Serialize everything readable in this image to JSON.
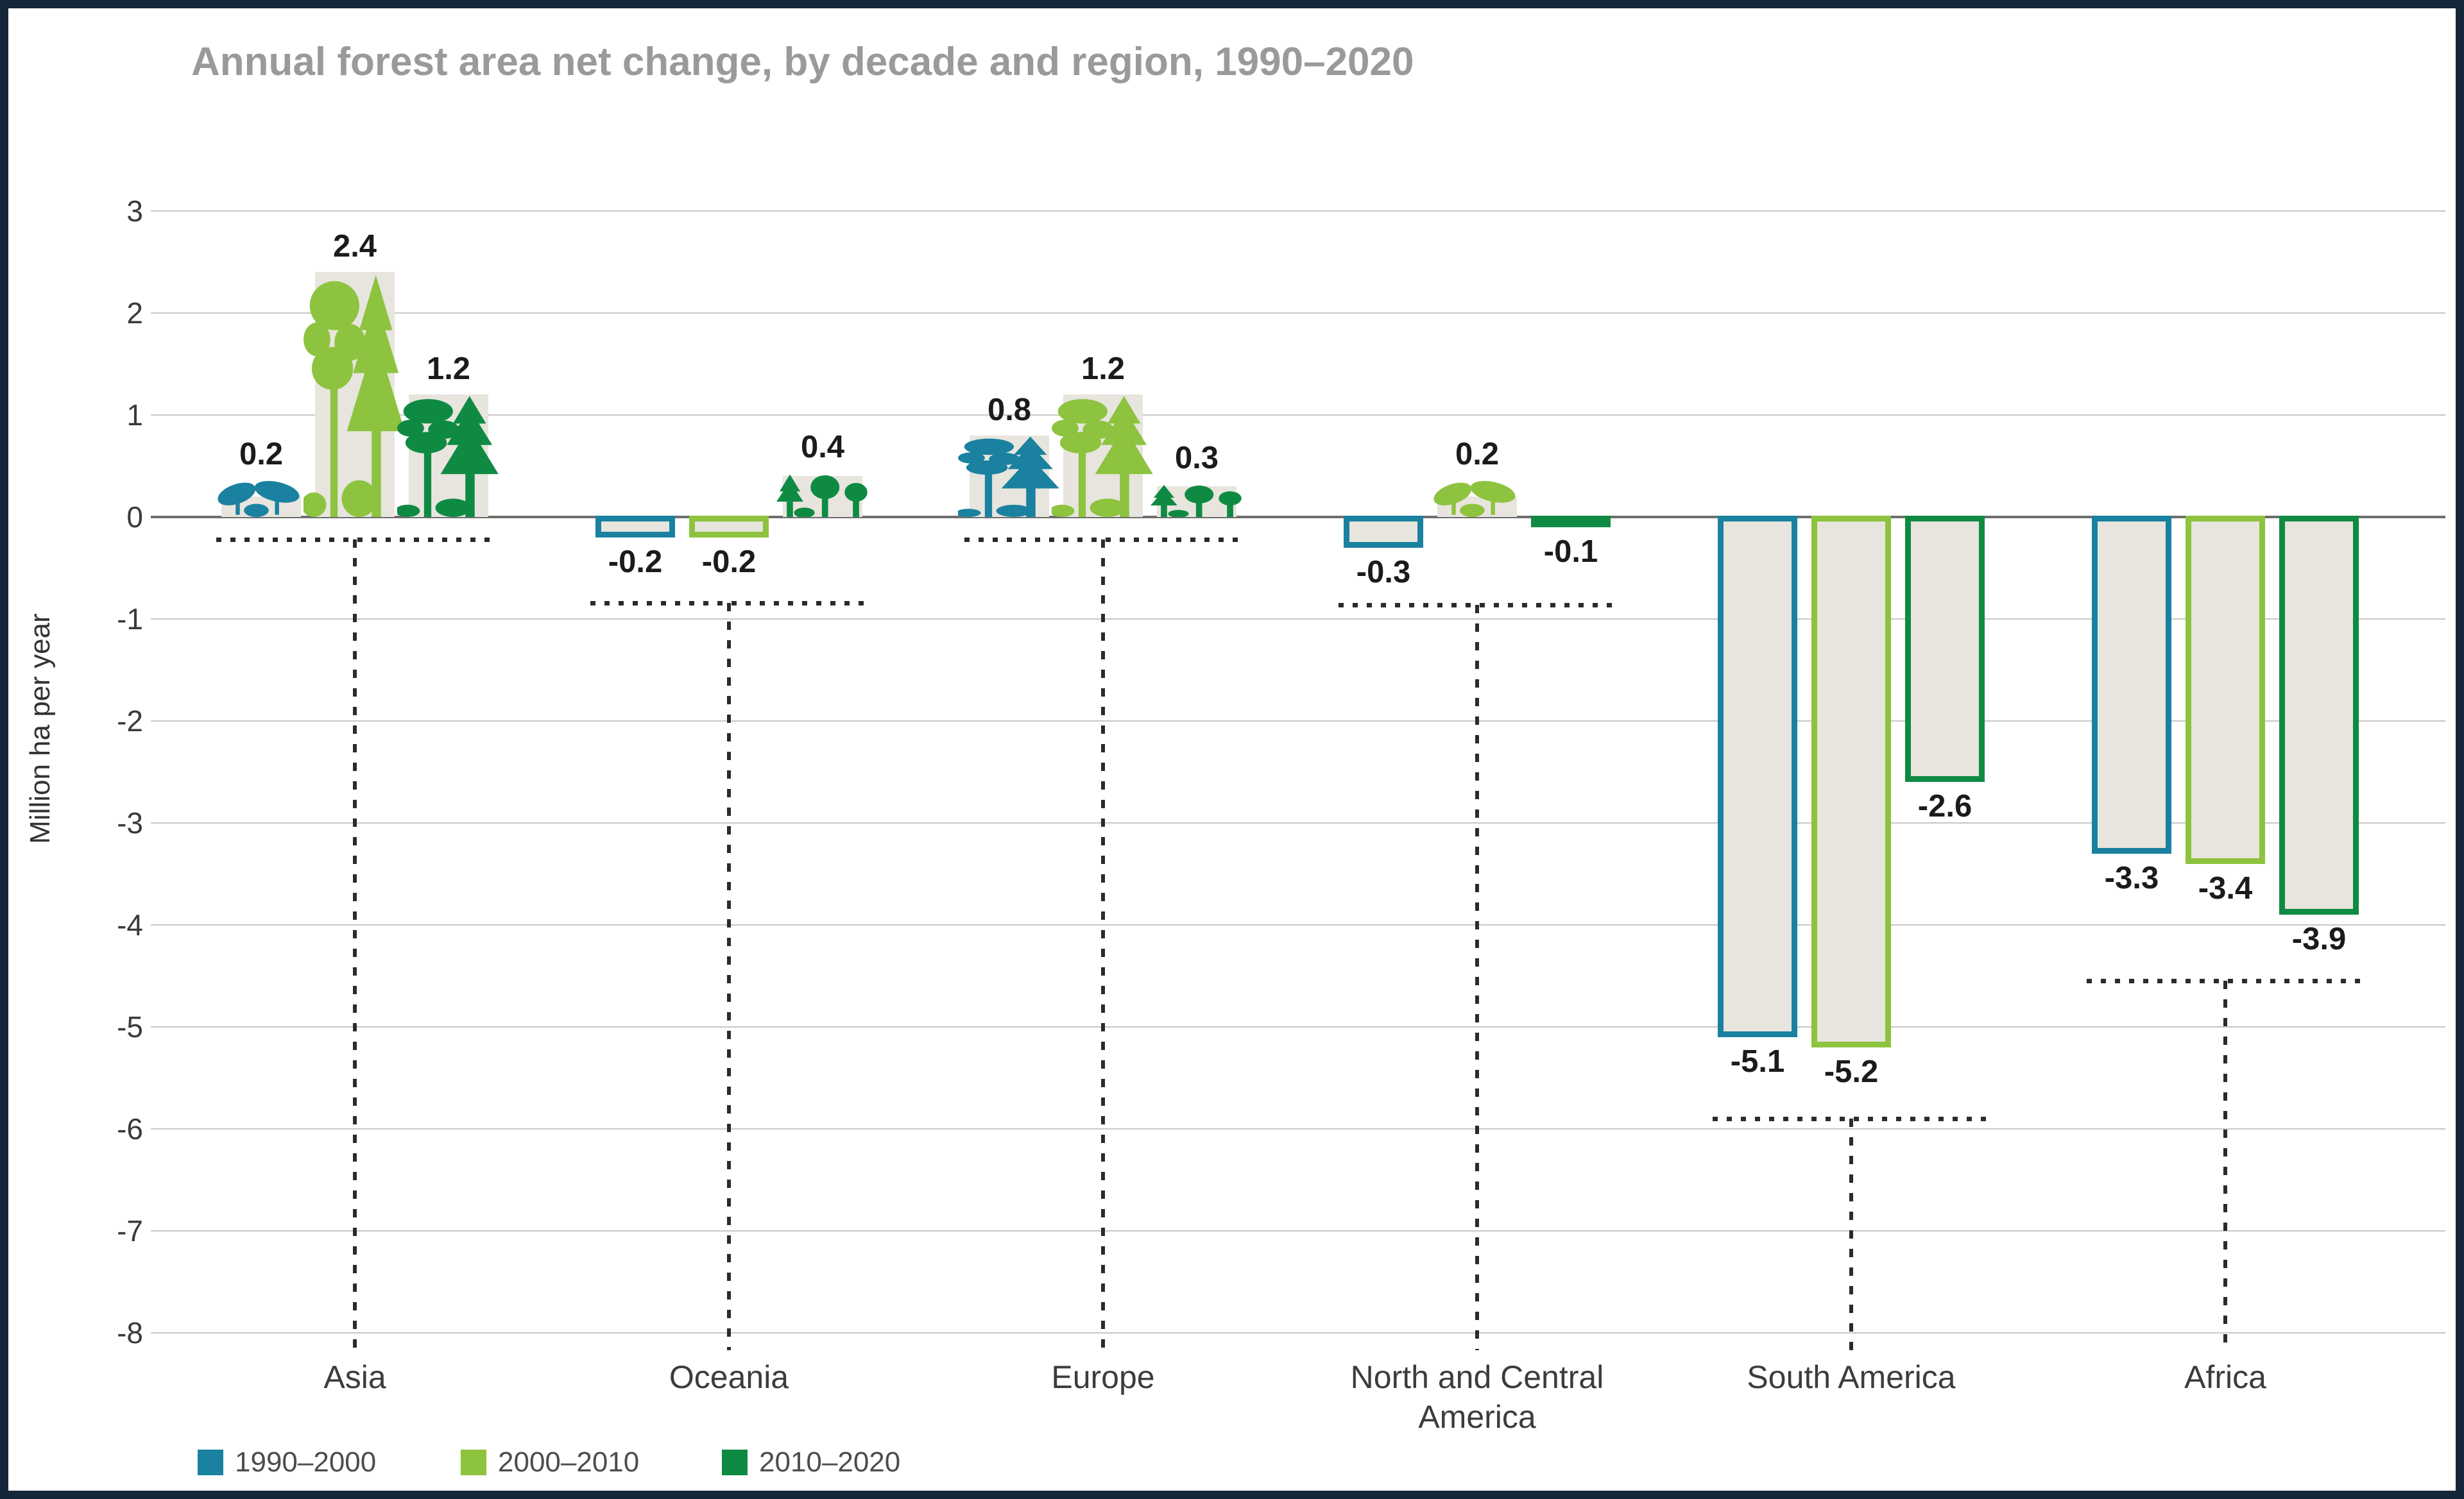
{
  "title": "Annual forest area net change, by decade and region, 1990–2020",
  "colors": {
    "frame_border": "#16263a",
    "bar_fill": "#e7e5dd",
    "gridline": "#c9c7c4",
    "zero_line": "#6e6e6e",
    "connector": "#2b2b2b",
    "title_text": "#9a9a9a"
  },
  "chart_data": {
    "type": "bar",
    "title": "Annual forest area net change, by decade and region, 1990–2020",
    "xlabel": "",
    "ylabel": "Million ha per year",
    "ylim": [
      -8,
      3
    ],
    "yticks": [
      3,
      2,
      1,
      0,
      -1,
      -2,
      -3,
      -4,
      -5,
      -6,
      -7,
      -8
    ],
    "grid": true,
    "legend_position": "bottom-left",
    "categories": [
      "Asia",
      "Oceania",
      "Europe",
      "North and Central America",
      "South America",
      "Africa"
    ],
    "series": [
      {
        "name": "1990–2000",
        "color": "#1a81a0",
        "values": [
          0.2,
          -0.2,
          0.8,
          -0.3,
          -5.1,
          -3.3
        ]
      },
      {
        "name": "2000–2010",
        "color": "#8dc33e",
        "values": [
          2.4,
          -0.2,
          1.2,
          0.2,
          -5.2,
          -3.4
        ]
      },
      {
        "name": "2010–2020",
        "color": "#0f8a43",
        "values": [
          1.2,
          0.4,
          0.3,
          -0.1,
          -2.6,
          -3.9
        ]
      }
    ],
    "bar_style": {
      "positive": "grey fill with tree illustration in series color",
      "negative": "grey fill with series-color outline"
    },
    "connector_y": [
      -0.22,
      -0.84,
      -0.22,
      -0.86,
      -5.9,
      -4.55
    ]
  }
}
